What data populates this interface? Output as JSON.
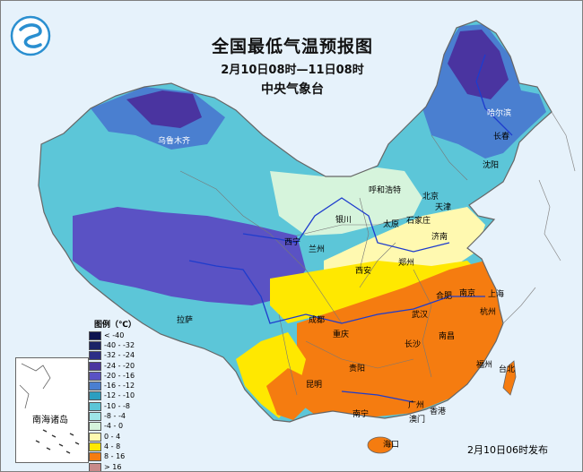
{
  "title": "全国最低气温预报图",
  "period": "2月10日08时—11日08时",
  "agency": "中央气象台",
  "issue_time": "2月10日06时发布",
  "inset_label": "南海诸岛",
  "legend": {
    "title": "图例（℃）",
    "items": [
      {
        "label": "< -40",
        "color": "#0c1450"
      },
      {
        "label": "-40 - -32",
        "color": "#1a2466"
      },
      {
        "label": "-32 - -24",
        "color": "#2c2d86"
      },
      {
        "label": "-24 - -20",
        "color": "#4a34a0"
      },
      {
        "label": "-20 - -16",
        "color": "#5a52c4"
      },
      {
        "label": "-16 - -12",
        "color": "#4a7fd0"
      },
      {
        "label": "-12 - -10",
        "color": "#2c9ec0"
      },
      {
        "label": "-10 - -8",
        "color": "#5cc6d8"
      },
      {
        "label": "-8 - -4",
        "color": "#9ee6e8"
      },
      {
        "label": "-4 - 0",
        "color": "#d6f4dc"
      },
      {
        "label": "0 - 4",
        "color": "#fff9b0"
      },
      {
        "label": "4 - 8",
        "color": "#ffe800"
      },
      {
        "label": "8 - 16",
        "color": "#f57c10"
      },
      {
        "label": "> 16",
        "color": "#c88a8a"
      }
    ]
  },
  "cities": [
    {
      "name": "乌鲁木齐",
      "light": true
    },
    {
      "name": "哈尔滨",
      "light": true
    },
    {
      "name": "长春",
      "light": false
    },
    {
      "name": "沈阳",
      "light": false
    },
    {
      "name": "呼和浩特",
      "light": false
    },
    {
      "name": "北京",
      "light": false
    },
    {
      "name": "天津",
      "light": false
    },
    {
      "name": "银川",
      "light": false
    },
    {
      "name": "太原",
      "light": false
    },
    {
      "name": "石家庄",
      "light": false
    },
    {
      "name": "济南",
      "light": false
    },
    {
      "name": "西宁",
      "light": false
    },
    {
      "name": "兰州",
      "light": false
    },
    {
      "name": "郑州",
      "light": false
    },
    {
      "name": "西安",
      "light": false
    },
    {
      "name": "南京",
      "light": false
    },
    {
      "name": "合肥",
      "light": false
    },
    {
      "name": "上海",
      "light": false
    },
    {
      "name": "拉萨",
      "light": false
    },
    {
      "name": "成都",
      "light": false
    },
    {
      "name": "武汉",
      "light": false
    },
    {
      "name": "杭州",
      "light": false
    },
    {
      "name": "重庆",
      "light": false
    },
    {
      "name": "长沙",
      "light": false
    },
    {
      "name": "南昌",
      "light": false
    },
    {
      "name": "贵阳",
      "light": false
    },
    {
      "name": "福州",
      "light": false
    },
    {
      "name": "台北",
      "light": false
    },
    {
      "name": "昆明",
      "light": false
    },
    {
      "name": "南宁",
      "light": false
    },
    {
      "name": "广州",
      "light": false
    },
    {
      "name": "香港",
      "light": false
    },
    {
      "name": "澳门",
      "light": false
    },
    {
      "name": "海口",
      "light": false
    }
  ]
}
